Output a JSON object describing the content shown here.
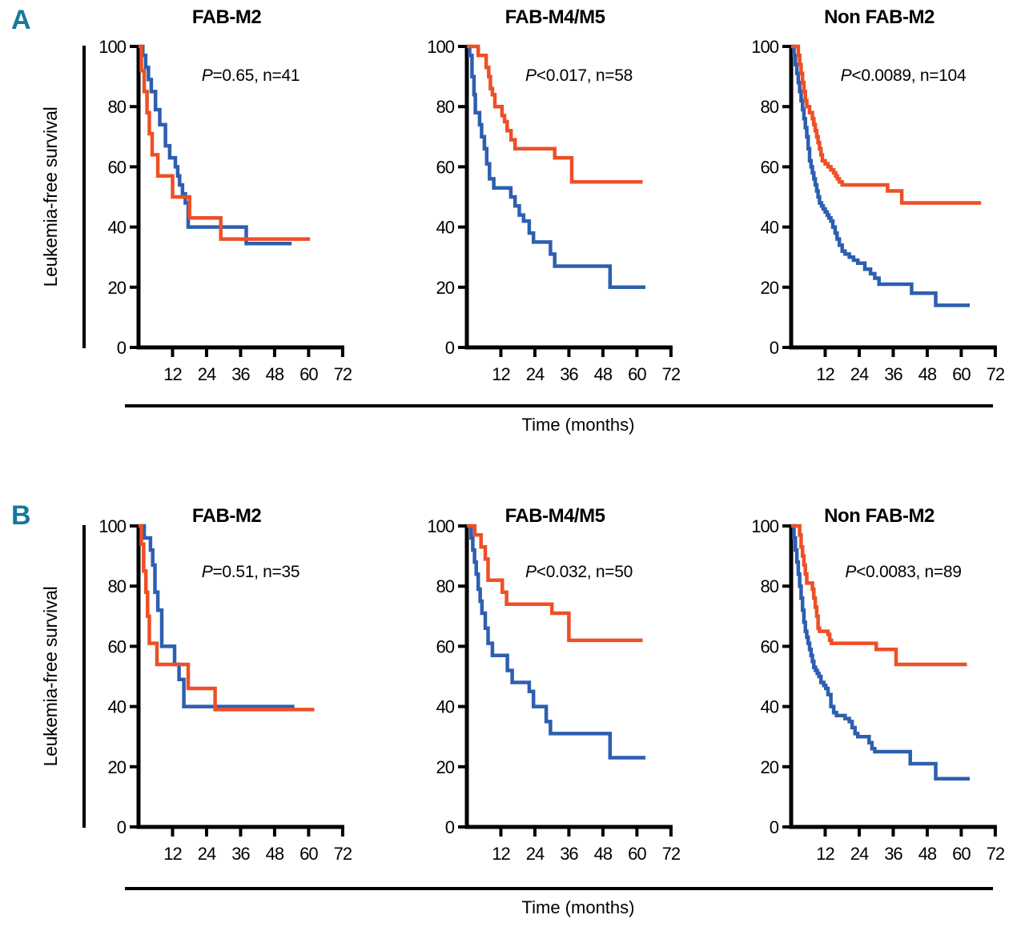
{
  "figure": {
    "row_labels": [
      "A",
      "B"
    ],
    "y_axis_label": "Leukemia-free survival",
    "x_axis_label": "Time (months)",
    "colors": {
      "blue_series": "#2d5fb0",
      "orange_series": "#ee4f26",
      "row_label": "#15789f",
      "axis": "#000000"
    }
  },
  "chart_data": [
    {
      "type": "line",
      "row": "A",
      "title": "FAB-M2",
      "p_symbol": "P",
      "annotation_rest": "=0.65, n=41",
      "xlabel": "Time (months)",
      "ylabel": "Leukemia-free survival",
      "xlim": [
        0,
        72
      ],
      "ylim": [
        0,
        100
      ],
      "xticks": [
        12,
        24,
        36,
        48,
        60,
        72
      ],
      "yticks": [
        0,
        20,
        40,
        60,
        80,
        100
      ],
      "grid": false,
      "legend": "none",
      "series": [
        {
          "name": "blue",
          "color_key": "blue_series",
          "end": 54,
          "steps": [
            [
              1.5,
              97
            ],
            [
              2.5,
              93
            ],
            [
              3.5,
              89
            ],
            [
              4.5,
              85
            ],
            [
              6,
              79
            ],
            [
              7.5,
              74
            ],
            [
              9.5,
              67
            ],
            [
              11,
              63
            ],
            [
              13,
              60
            ],
            [
              13.8,
              57
            ],
            [
              14.5,
              54
            ],
            [
              15.5,
              51
            ],
            [
              16.5,
              48
            ],
            [
              17.5,
              40
            ],
            [
              38,
              34.5
            ]
          ]
        },
        {
          "name": "orange",
          "color_key": "orange_series",
          "end": 60.5,
          "steps": [
            [
              1,
              92
            ],
            [
              2,
              85
            ],
            [
              3,
              78
            ],
            [
              3.8,
              71
            ],
            [
              4.8,
              64
            ],
            [
              6.8,
              57
            ],
            [
              12,
              50
            ],
            [
              18,
              43
            ],
            [
              29,
              36
            ]
          ]
        }
      ]
    },
    {
      "type": "line",
      "row": "A",
      "title": "FAB-M4/M5",
      "p_symbol": "P",
      "annotation_rest": "<0.017, n=58",
      "xlabel": "Time (months)",
      "ylabel": "Leukemia-free survival",
      "xlim": [
        0,
        72
      ],
      "ylim": [
        0,
        100
      ],
      "xticks": [
        12,
        24,
        36,
        48,
        60,
        72
      ],
      "yticks": [
        0,
        20,
        40,
        60,
        80,
        100
      ],
      "grid": false,
      "legend": "none",
      "series": [
        {
          "name": "blue",
          "color_key": "blue_series",
          "end": 63,
          "steps": [
            [
              1,
              97
            ],
            [
              1.8,
              90
            ],
            [
              2.5,
              84
            ],
            [
              3,
              78
            ],
            [
              4.5,
              74
            ],
            [
              5.2,
              70
            ],
            [
              6.2,
              66
            ],
            [
              7,
              61
            ],
            [
              8,
              56
            ],
            [
              9.5,
              53
            ],
            [
              15.5,
              50
            ],
            [
              17,
              47
            ],
            [
              18.5,
              44
            ],
            [
              20,
              42
            ],
            [
              22,
              38
            ],
            [
              23.5,
              35
            ],
            [
              29.5,
              31
            ],
            [
              31,
              27
            ],
            [
              50.5,
              20
            ]
          ]
        },
        {
          "name": "orange",
          "color_key": "orange_series",
          "end": 62,
          "steps": [
            [
              4,
              97
            ],
            [
              6.8,
              93
            ],
            [
              7.7,
              90
            ],
            [
              8.3,
              86
            ],
            [
              9,
              84
            ],
            [
              9.9,
              80
            ],
            [
              12.4,
              77
            ],
            [
              13.3,
              75
            ],
            [
              14.2,
              72
            ],
            [
              15.6,
              69
            ],
            [
              17,
              66
            ],
            [
              31,
              63
            ],
            [
              37,
              55
            ]
          ]
        }
      ]
    },
    {
      "type": "line",
      "row": "A",
      "title": "Non FAB-M2",
      "p_symbol": "P",
      "annotation_rest": "<0.0089, n=104",
      "xlabel": "Time (months)",
      "ylabel": "Leukemia-free survival",
      "xlim": [
        0,
        72
      ],
      "ylim": [
        0,
        100
      ],
      "xticks": [
        12,
        24,
        36,
        48,
        60,
        72
      ],
      "yticks": [
        0,
        20,
        40,
        60,
        80,
        100
      ],
      "grid": false,
      "legend": "none",
      "series": [
        {
          "name": "blue",
          "color_key": "blue_series",
          "end": 63,
          "steps": [
            [
              1,
              97
            ],
            [
              1.5,
              94
            ],
            [
              2,
              91
            ],
            [
              2.5,
              88
            ],
            [
              3,
              85
            ],
            [
              3.5,
              82
            ],
            [
              4,
              79
            ],
            [
              4.5,
              76
            ],
            [
              5,
              73
            ],
            [
              5.5,
              70
            ],
            [
              6,
              66
            ],
            [
              6.5,
              62
            ],
            [
              7,
              60
            ],
            [
              7.5,
              58
            ],
            [
              8,
              56
            ],
            [
              8.5,
              54
            ],
            [
              9,
              52
            ],
            [
              9.5,
              50
            ],
            [
              10,
              48
            ],
            [
              10.7,
              47
            ],
            [
              11.3,
              46
            ],
            [
              12,
              45
            ],
            [
              12.7,
              44
            ],
            [
              13.3,
              43
            ],
            [
              14,
              42
            ],
            [
              14.7,
              40
            ],
            [
              15.5,
              38
            ],
            [
              16.2,
              36
            ],
            [
              17,
              34
            ],
            [
              18,
              32
            ],
            [
              19,
              31
            ],
            [
              20.5,
              30
            ],
            [
              22,
              29
            ],
            [
              23.5,
              28
            ],
            [
              26,
              26
            ],
            [
              28,
              24.5
            ],
            [
              29.5,
              23
            ],
            [
              31,
              21
            ],
            [
              42.5,
              18
            ],
            [
              51,
              14
            ]
          ]
        },
        {
          "name": "orange",
          "color_key": "orange_series",
          "end": 67,
          "steps": [
            [
              2.5,
              97
            ],
            [
              3,
              94
            ],
            [
              3.5,
              91
            ],
            [
              4,
              88
            ],
            [
              4.5,
              85
            ],
            [
              5,
              82
            ],
            [
              5.5,
              80
            ],
            [
              6.5,
              78
            ],
            [
              7.5,
              76
            ],
            [
              8,
              74
            ],
            [
              8.5,
              72
            ],
            [
              9,
              70
            ],
            [
              9.5,
              68
            ],
            [
              10,
              66
            ],
            [
              10.5,
              64
            ],
            [
              11,
              62
            ],
            [
              12,
              61
            ],
            [
              13,
              60
            ],
            [
              14,
              59
            ],
            [
              15,
              58
            ],
            [
              15.7,
              57
            ],
            [
              16.3,
              56
            ],
            [
              17,
              55
            ],
            [
              18,
              54
            ],
            [
              34,
              52
            ],
            [
              39,
              48
            ]
          ]
        }
      ]
    },
    {
      "type": "line",
      "row": "B",
      "title": "FAB-M2",
      "p_symbol": "P",
      "annotation_rest": "=0.51, n=35",
      "xlabel": "Time (months)",
      "ylabel": "Leukemia-free survival",
      "xlim": [
        0,
        72
      ],
      "ylim": [
        0,
        100
      ],
      "xticks": [
        12,
        24,
        36,
        48,
        60,
        72
      ],
      "yticks": [
        0,
        20,
        40,
        60,
        80,
        100
      ],
      "grid": false,
      "legend": "none",
      "series": [
        {
          "name": "blue",
          "color_key": "blue_series",
          "end": 55,
          "steps": [
            [
              2,
              96
            ],
            [
              4.2,
              92
            ],
            [
              5,
              87
            ],
            [
              5.8,
              78
            ],
            [
              6.8,
              72
            ],
            [
              8.2,
              60
            ],
            [
              12.7,
              54
            ],
            [
              14.3,
              49
            ],
            [
              16,
              40
            ]
          ]
        },
        {
          "name": "orange",
          "color_key": "orange_series",
          "end": 62,
          "steps": [
            [
              1,
              94
            ],
            [
              1.8,
              85
            ],
            [
              2.6,
              78
            ],
            [
              3.2,
              70
            ],
            [
              3.8,
              61
            ],
            [
              6.5,
              54
            ],
            [
              17.5,
              46
            ],
            [
              27,
              39
            ]
          ]
        }
      ]
    },
    {
      "type": "line",
      "row": "B",
      "title": "FAB-M4/M5",
      "p_symbol": "P",
      "annotation_rest": "<0.032, n=50",
      "xlabel": "Time (months)",
      "ylabel": "Leukemia-free survival",
      "xlim": [
        0,
        72
      ],
      "ylim": [
        0,
        100
      ],
      "xticks": [
        12,
        24,
        36,
        48,
        60,
        72
      ],
      "yticks": [
        0,
        20,
        40,
        60,
        80,
        100
      ],
      "grid": false,
      "legend": "none",
      "series": [
        {
          "name": "blue",
          "color_key": "blue_series",
          "end": 63,
          "steps": [
            [
              1.5,
              96
            ],
            [
              2.1,
              92
            ],
            [
              2.7,
              88
            ],
            [
              3.3,
              84
            ],
            [
              4,
              79
            ],
            [
              4.7,
              75
            ],
            [
              5.3,
              71
            ],
            [
              6.5,
              66
            ],
            [
              7.5,
              61
            ],
            [
              9,
              57
            ],
            [
              14.3,
              52
            ],
            [
              16,
              48
            ],
            [
              22,
              45
            ],
            [
              23.5,
              40
            ],
            [
              28,
              35
            ],
            [
              29.5,
              31
            ],
            [
              50.5,
              23
            ]
          ]
        },
        {
          "name": "orange",
          "color_key": "orange_series",
          "end": 62,
          "steps": [
            [
              2.8,
              97
            ],
            [
              5,
              93
            ],
            [
              6.5,
              89
            ],
            [
              7.5,
              82
            ],
            [
              12.5,
              78
            ],
            [
              14,
              74
            ],
            [
              30,
              71
            ],
            [
              36,
              62
            ]
          ]
        }
      ]
    },
    {
      "type": "line",
      "row": "B",
      "title": "Non FAB-M2",
      "p_symbol": "P",
      "annotation_rest": "<0.0083, n=89",
      "xlabel": "Time (months)",
      "ylabel": "Leukemia-free survival",
      "xlim": [
        0,
        72
      ],
      "ylim": [
        0,
        100
      ],
      "xticks": [
        12,
        24,
        36,
        48,
        60,
        72
      ],
      "yticks": [
        0,
        20,
        40,
        60,
        80,
        100
      ],
      "grid": false,
      "legend": "none",
      "series": [
        {
          "name": "blue",
          "color_key": "blue_series",
          "end": 63,
          "steps": [
            [
              1,
              96
            ],
            [
              1.5,
              92
            ],
            [
              2,
              88
            ],
            [
              2.5,
              84
            ],
            [
              3,
              80
            ],
            [
              3.5,
              76
            ],
            [
              4,
              72
            ],
            [
              4.5,
              68
            ],
            [
              5,
              65
            ],
            [
              5.5,
              63
            ],
            [
              6,
              61
            ],
            [
              6.5,
              59
            ],
            [
              7,
              57
            ],
            [
              7.5,
              55
            ],
            [
              8,
              53
            ],
            [
              8.6,
              52
            ],
            [
              9.2,
              51
            ],
            [
              9.8,
              50
            ],
            [
              10.5,
              48
            ],
            [
              11.5,
              47
            ],
            [
              12.2,
              46
            ],
            [
              13,
              44
            ],
            [
              14,
              40
            ],
            [
              15,
              38
            ],
            [
              16,
              37
            ],
            [
              19,
              36
            ],
            [
              20.5,
              35
            ],
            [
              21.5,
              33
            ],
            [
              22.5,
              31
            ],
            [
              23.5,
              30
            ],
            [
              27.5,
              28
            ],
            [
              28.5,
              26
            ],
            [
              29.5,
              25
            ],
            [
              42,
              21
            ],
            [
              51,
              16
            ]
          ]
        },
        {
          "name": "orange",
          "color_key": "orange_series",
          "end": 62,
          "steps": [
            [
              3,
              97
            ],
            [
              3.5,
              93
            ],
            [
              4,
              90
            ],
            [
              4.5,
              87
            ],
            [
              5,
              84
            ],
            [
              5.5,
              81
            ],
            [
              7.5,
              79
            ],
            [
              8,
              76
            ],
            [
              8.5,
              73
            ],
            [
              9,
              70
            ],
            [
              9.5,
              66
            ],
            [
              10,
              65
            ],
            [
              13,
              64
            ],
            [
              13.6,
              62
            ],
            [
              14.2,
              61
            ],
            [
              30,
              59
            ],
            [
              37,
              54
            ]
          ]
        }
      ]
    }
  ]
}
